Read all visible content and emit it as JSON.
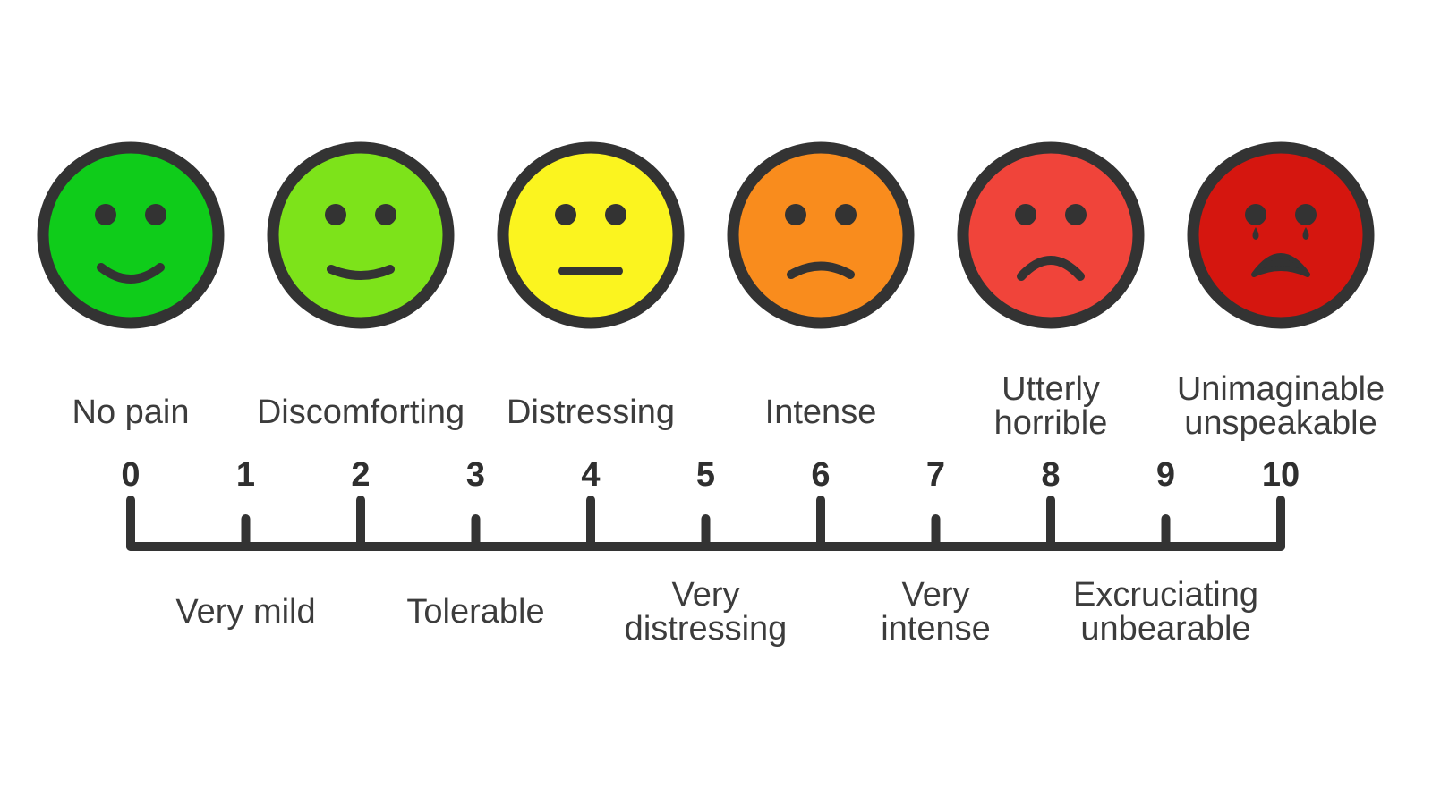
{
  "faces": [
    {
      "color": "#0fcc1a",
      "expression": "big-smile"
    },
    {
      "color": "#7de31a",
      "expression": "smile"
    },
    {
      "color": "#fbf41f",
      "expression": "neutral"
    },
    {
      "color": "#f98c1d",
      "expression": "frown"
    },
    {
      "color": "#f0443a",
      "expression": "big-frown"
    },
    {
      "color": "#d5160f",
      "expression": "crying"
    }
  ],
  "stroke_color": "#333333",
  "top_labels": [
    {
      "lines": [
        "No pain"
      ]
    },
    {
      "lines": [
        "Discomforting"
      ]
    },
    {
      "lines": [
        "Distressing"
      ]
    },
    {
      "lines": [
        "Intense"
      ]
    },
    {
      "lines": [
        "Utterly",
        "horrible"
      ]
    },
    {
      "lines": [
        "Unimaginable",
        "unspeakable"
      ]
    }
  ],
  "numbers": [
    "0",
    "1",
    "2",
    "3",
    "4",
    "5",
    "6",
    "7",
    "8",
    "9",
    "10"
  ],
  "bottom_labels": [
    {
      "lines": [
        "Very mild"
      ]
    },
    {
      "lines": [
        "Tolerable"
      ]
    },
    {
      "lines": [
        "Very",
        "distressing"
      ]
    },
    {
      "lines": [
        "Very",
        "intense"
      ]
    },
    {
      "lines": [
        "Excruciating",
        "unbearable"
      ]
    }
  ]
}
